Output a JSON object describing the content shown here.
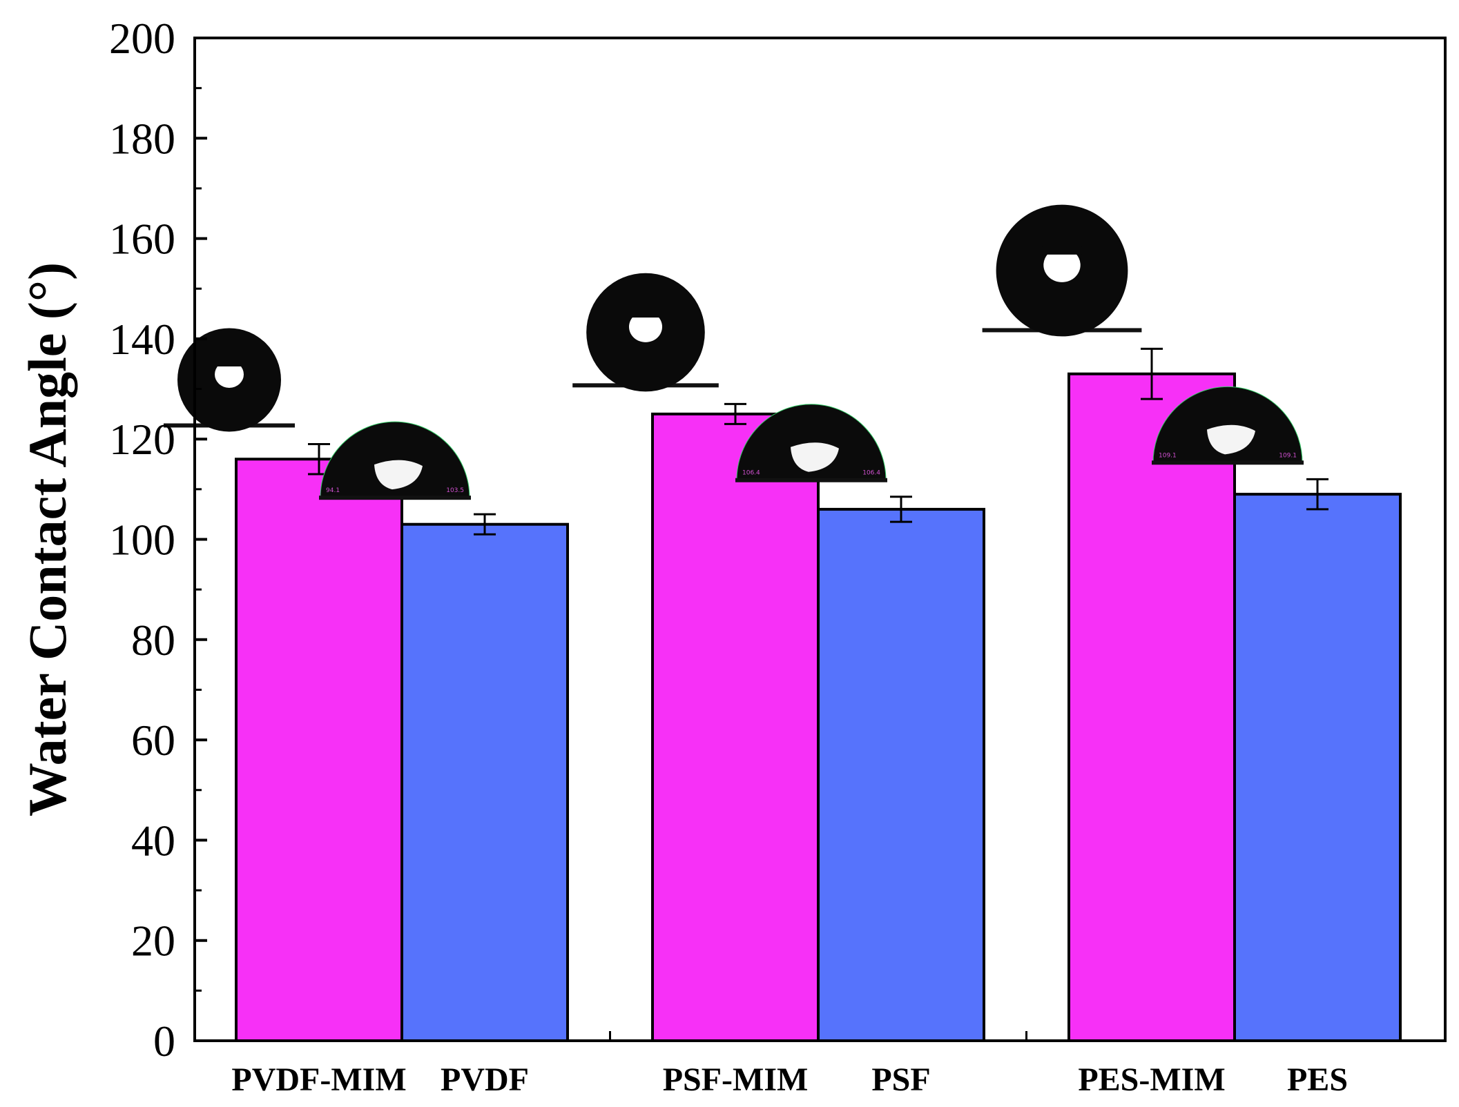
{
  "chart_data": {
    "type": "bar",
    "ylabel": "Water Contact Angle (°)",
    "xlabel": "",
    "ylim": [
      0,
      200
    ],
    "yticks": [
      0,
      20,
      40,
      60,
      80,
      100,
      120,
      140,
      160,
      180,
      200
    ],
    "grid": false,
    "legend": "none",
    "bars": [
      {
        "label": "PVDF-MIM",
        "value": 116,
        "error": 3,
        "color": "#f730f7",
        "droplet_shape": "round",
        "droplet_readouts": []
      },
      {
        "label": "PVDF",
        "value": 103,
        "error": 2,
        "color": "#5673fc",
        "droplet_shape": "dome",
        "droplet_readouts": [
          "94.1",
          "103.5"
        ]
      },
      {
        "label": "PSF-MIM",
        "value": 125,
        "error": 2,
        "color": "#f730f7",
        "droplet_shape": "round",
        "droplet_readouts": []
      },
      {
        "label": "PSF",
        "value": 106,
        "error": 2.5,
        "color": "#5673fc",
        "droplet_shape": "dome",
        "droplet_readouts": [
          "106.4",
          "106.4"
        ]
      },
      {
        "label": "PES-MIM",
        "value": 133,
        "error": 5,
        "color": "#f730f7",
        "droplet_shape": "round",
        "droplet_readouts": []
      },
      {
        "label": "PES",
        "value": 109,
        "error": 3,
        "color": "#5673fc",
        "droplet_shape": "dome",
        "droplet_readouts": [
          "109.1",
          "109.1"
        ]
      }
    ]
  }
}
